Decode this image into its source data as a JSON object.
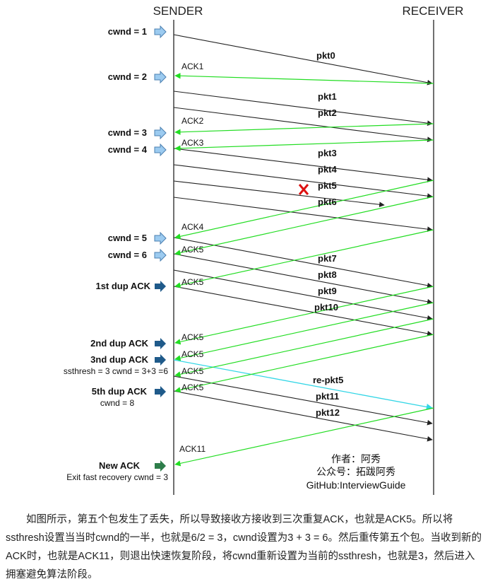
{
  "headers": {
    "sender": "SENDER",
    "receiver": "RECEIVER"
  },
  "cwnd_labels": [
    {
      "id": "cwnd-1",
      "text": "cwnd = 1",
      "arrow": "light"
    },
    {
      "id": "cwnd-2",
      "text": "cwnd = 2",
      "arrow": "light"
    },
    {
      "id": "cwnd-3",
      "text": "cwnd = 3",
      "arrow": "light"
    },
    {
      "id": "cwnd-4",
      "text": "cwnd = 4",
      "arrow": "light"
    },
    {
      "id": "cwnd-5",
      "text": "cwnd = 5",
      "arrow": "light"
    },
    {
      "id": "cwnd-6",
      "text": "cwnd = 6",
      "arrow": "light"
    },
    {
      "id": "dup-ack-1",
      "text": "1st dup ACK",
      "arrow": "dark"
    },
    {
      "id": "dup-ack-2",
      "text": "2nd dup ACK",
      "arrow": "dark"
    },
    {
      "id": "dup-ack-3",
      "text": "3nd dup ACK",
      "arrow": "dark"
    },
    {
      "id": "dup-ack-5",
      "text": "5th dup ACK",
      "arrow": "dark"
    },
    {
      "id": "new-ack",
      "text": "New ACK",
      "arrow": "green"
    }
  ],
  "notes": {
    "ssthresh": "ssthresh = 3  cwnd = 3+3 =6",
    "cwnd8": "cwnd = 8",
    "exit": "Exit fast recovery cwnd = 3"
  },
  "packets": [
    {
      "id": "pkt0",
      "label": "pkt0"
    },
    {
      "id": "pkt1",
      "label": "pkt1"
    },
    {
      "id": "pkt2",
      "label": "pkt2"
    },
    {
      "id": "pkt3",
      "label": "pkt3"
    },
    {
      "id": "pkt4",
      "label": "pkt4"
    },
    {
      "id": "pkt5",
      "label": "pkt5",
      "lost": true
    },
    {
      "id": "pkt6",
      "label": "pkt6"
    },
    {
      "id": "pkt7",
      "label": "pkt7"
    },
    {
      "id": "pkt8",
      "label": "pkt8"
    },
    {
      "id": "pkt9",
      "label": "pkt9"
    },
    {
      "id": "pkt10",
      "label": "pkt10"
    },
    {
      "id": "re-pkt5",
      "label": "re-pkt5",
      "retransmit": true
    },
    {
      "id": "pkt11",
      "label": "pkt11"
    },
    {
      "id": "pkt12",
      "label": "pkt12"
    }
  ],
  "acks": [
    {
      "id": "ack1",
      "label": "ACK1"
    },
    {
      "id": "ack2",
      "label": "ACK2"
    },
    {
      "id": "ack3",
      "label": "ACK3"
    },
    {
      "id": "ack4",
      "label": "ACK4"
    },
    {
      "id": "ack5-a",
      "label": "ACK5"
    },
    {
      "id": "ack5-b",
      "label": "ACK5"
    },
    {
      "id": "ack5-c",
      "label": "ACK5"
    },
    {
      "id": "ack5-d",
      "label": "ACK5"
    },
    {
      "id": "ack5-e",
      "label": "ACK5"
    },
    {
      "id": "ack5-f",
      "label": "ACK5"
    },
    {
      "id": "ack11",
      "label": "ACK11"
    }
  ],
  "credits": {
    "author": "作者：阿秀",
    "wechat": "公众号：拓跋阿秀",
    "github": "GitHub:InterviewGuide"
  },
  "colors": {
    "data_line": "#222222",
    "ack_line": "#22dd22",
    "retransmit_line": "#33d6e6",
    "lost_mark": "#dd1111",
    "arrow_light": "#9ccbf0",
    "arrow_dark": "#1f5a8a",
    "arrow_green": "#2e7d4a"
  },
  "caption": "如图所示，第五个包发生了丢失，所以导致接收方接收到三次重复ACK，也就是ACK5。所以将ssthresh设置当当时cwnd的一半，也就是6/2 = 3，cwnd设置为3 + 3 = 6。然后重传第五个包。当收到新的ACK时，也就是ACK11，则退出快速恢复阶段，将cwnd重新设置为当前的ssthresh，也就是3，然后进入拥塞避免算法阶段。"
}
